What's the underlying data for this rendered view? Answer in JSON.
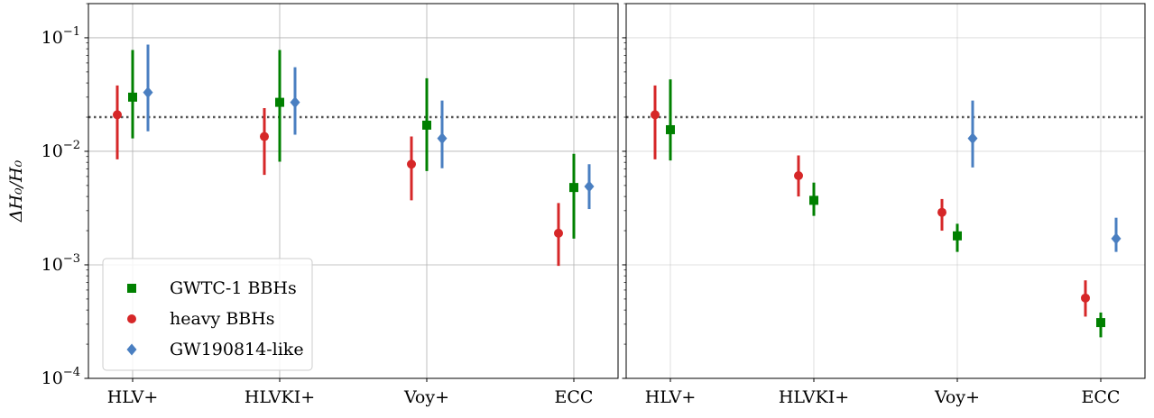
{
  "chart_data": [
    {
      "type": "scatter",
      "panel": "left",
      "categories": [
        "HLV+",
        "HLVKI+",
        "Voy+",
        "ECC"
      ],
      "ylabel": "ΔH₀/H₀",
      "yscale": "log",
      "ylim": [
        0.0001,
        0.2
      ],
      "yticks": [
        {
          "value": 0.1,
          "base": "10",
          "exp": "−1"
        },
        {
          "value": 0.01,
          "base": "10",
          "exp": "−2"
        },
        {
          "value": 0.001,
          "base": "10",
          "exp": "−3"
        },
        {
          "value": 0.0001,
          "base": "10",
          "exp": "−4"
        }
      ],
      "grid": true,
      "reference_line": {
        "y": 0.02,
        "style": "dotted",
        "color": "#555555"
      },
      "legend": {
        "placement": "lower-left",
        "entries": [
          {
            "label": "GWTC-1 BBHs",
            "marker": "square",
            "color": "#008000"
          },
          {
            "label": "heavy BBHs",
            "marker": "circle",
            "color": "#d62728"
          },
          {
            "label": "GW190814-like",
            "marker": "diamond",
            "color": "#4a7fc1"
          }
        ]
      },
      "series": [
        {
          "name": "heavy BBHs",
          "color": "#d62728",
          "marker": "circle",
          "offset": -1,
          "points": [
            {
              "y": 0.021,
              "lo": 0.0085,
              "hi": 0.038
            },
            {
              "y": 0.0135,
              "lo": 0.0062,
              "hi": 0.024
            },
            {
              "y": 0.0077,
              "lo": 0.0037,
              "hi": 0.0135
            },
            {
              "y": 0.0019,
              "lo": 0.00098,
              "hi": 0.0035
            }
          ]
        },
        {
          "name": "GWTC-1 BBHs",
          "color": "#008000",
          "marker": "square",
          "offset": 0,
          "points": [
            {
              "y": 0.03,
              "lo": 0.013,
              "hi": 0.078
            },
            {
              "y": 0.027,
              "lo": 0.0081,
              "hi": 0.078
            },
            {
              "y": 0.017,
              "lo": 0.0067,
              "hi": 0.044
            },
            {
              "y": 0.0048,
              "lo": 0.0017,
              "hi": 0.0095
            }
          ]
        },
        {
          "name": "GW190814-like",
          "color": "#4a7fc1",
          "marker": "diamond",
          "offset": 1,
          "points": [
            {
              "y": 0.033,
              "lo": 0.015,
              "hi": 0.087
            },
            {
              "y": 0.027,
              "lo": 0.014,
              "hi": 0.055
            },
            {
              "y": 0.013,
              "lo": 0.0071,
              "hi": 0.028
            },
            {
              "y": 0.0049,
              "lo": 0.0031,
              "hi": 0.0077
            }
          ]
        }
      ]
    },
    {
      "type": "scatter",
      "panel": "right",
      "categories": [
        "HLV+",
        "HLVKI+",
        "Voy+",
        "ECC"
      ],
      "yscale": "log",
      "ylim": [
        0.0001,
        0.2
      ],
      "grid": true,
      "reference_line": {
        "y": 0.02,
        "style": "dotted",
        "color": "#555555"
      },
      "series": [
        {
          "name": "heavy BBHs",
          "color": "#d62728",
          "marker": "circle",
          "offset": -1,
          "points": [
            {
              "y": 0.021,
              "lo": 0.0085,
              "hi": 0.038
            },
            {
              "y": 0.0061,
              "lo": 0.004,
              "hi": 0.0092
            },
            {
              "y": 0.0029,
              "lo": 0.002,
              "hi": 0.0038
            },
            {
              "y": 0.00051,
              "lo": 0.00035,
              "hi": 0.00073
            }
          ]
        },
        {
          "name": "GWTC-1 BBHs",
          "color": "#008000",
          "marker": "square",
          "offset": 0,
          "points": [
            {
              "y": 0.0155,
              "lo": 0.0083,
              "hi": 0.043
            },
            {
              "y": 0.0037,
              "lo": 0.0027,
              "hi": 0.0053
            },
            {
              "y": 0.0018,
              "lo": 0.0013,
              "hi": 0.0023
            },
            {
              "y": 0.00031,
              "lo": 0.00023,
              "hi": 0.00038
            }
          ]
        },
        {
          "name": "GW190814-like",
          "color": "#4a7fc1",
          "marker": "diamond",
          "offset": 1,
          "points": [
            {
              "y": null,
              "lo": null,
              "hi": null
            },
            {
              "y": null,
              "lo": null,
              "hi": null
            },
            {
              "y": 0.013,
              "lo": 0.0072,
              "hi": 0.028
            },
            {
              "y": 0.0017,
              "lo": 0.0013,
              "hi": 0.0026
            }
          ]
        }
      ]
    }
  ]
}
